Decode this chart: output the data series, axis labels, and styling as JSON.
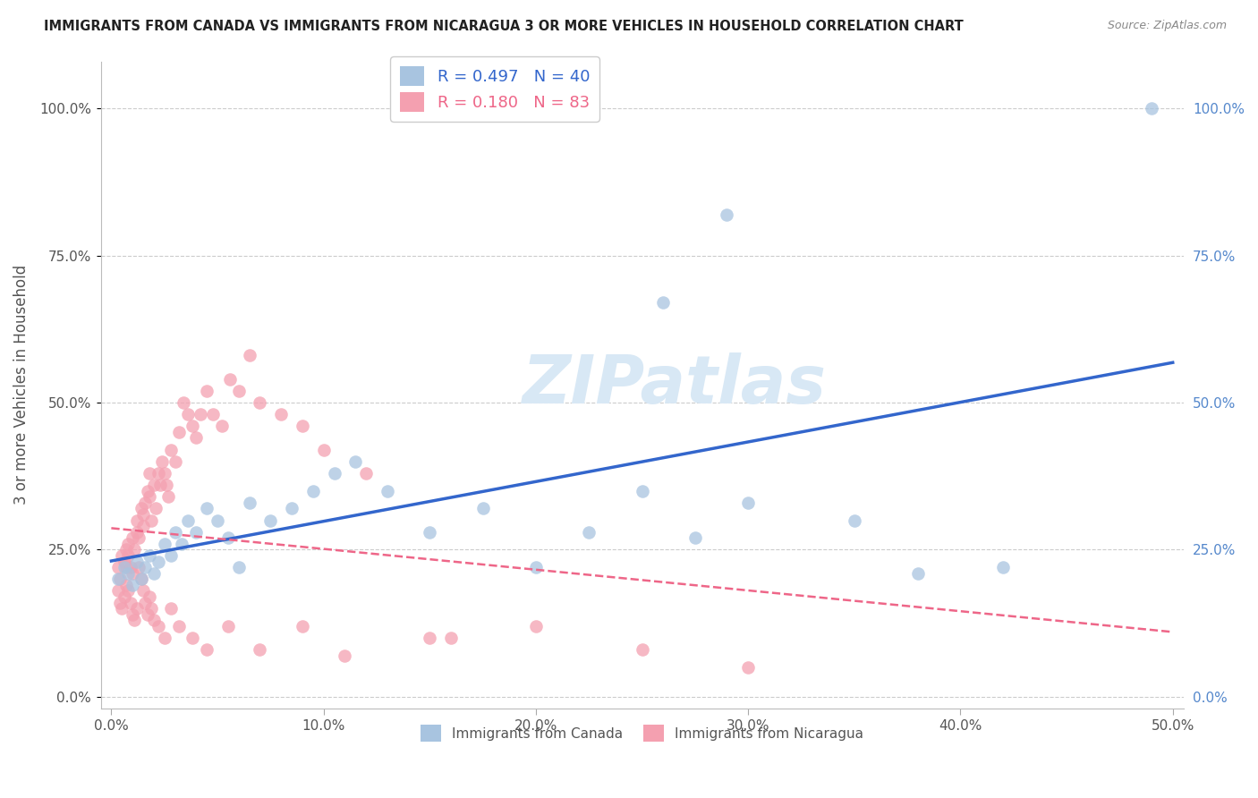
{
  "title": "IMMIGRANTS FROM CANADA VS IMMIGRANTS FROM NICARAGUA 3 OR MORE VEHICLES IN HOUSEHOLD CORRELATION CHART",
  "source": "Source: ZipAtlas.com",
  "ylabel": "3 or more Vehicles in Household",
  "xlabel_ticks": [
    "0.0%",
    "10.0%",
    "20.0%",
    "30.0%",
    "40.0%",
    "50.0%"
  ],
  "xlabel_vals": [
    0.0,
    0.1,
    0.2,
    0.3,
    0.4,
    0.5
  ],
  "ylabel_ticks": [
    "0.0%",
    "25.0%",
    "50.0%",
    "75.0%",
    "100.0%"
  ],
  "ylabel_vals": [
    0.0,
    0.25,
    0.5,
    0.75,
    1.0
  ],
  "xlim": [
    -0.005,
    0.505
  ],
  "ylim": [
    -0.02,
    1.08
  ],
  "canada_R": 0.497,
  "canada_N": 40,
  "nicaragua_R": 0.18,
  "nicaragua_N": 83,
  "canada_color": "#A8C4E0",
  "nicaragua_color": "#F4A0B0",
  "canada_line_color": "#3366CC",
  "nicaragua_line_color": "#EE6688",
  "canada_x": [
    0.003,
    0.006,
    0.008,
    0.01,
    0.012,
    0.014,
    0.016,
    0.018,
    0.02,
    0.022,
    0.025,
    0.028,
    0.03,
    0.033,
    0.036,
    0.04,
    0.045,
    0.05,
    0.055,
    0.06,
    0.065,
    0.075,
    0.085,
    0.095,
    0.105,
    0.115,
    0.13,
    0.15,
    0.175,
    0.2,
    0.225,
    0.25,
    0.275,
    0.3,
    0.35,
    0.26,
    0.29,
    0.38,
    0.42,
    0.49
  ],
  "canada_y": [
    0.2,
    0.22,
    0.21,
    0.19,
    0.23,
    0.2,
    0.22,
    0.24,
    0.21,
    0.23,
    0.26,
    0.24,
    0.28,
    0.26,
    0.3,
    0.28,
    0.32,
    0.3,
    0.27,
    0.22,
    0.33,
    0.3,
    0.32,
    0.35,
    0.38,
    0.4,
    0.35,
    0.28,
    0.32,
    0.22,
    0.28,
    0.35,
    0.27,
    0.33,
    0.3,
    0.67,
    0.82,
    0.21,
    0.22,
    1.0
  ],
  "nicaragua_x": [
    0.003,
    0.004,
    0.005,
    0.006,
    0.007,
    0.007,
    0.008,
    0.008,
    0.009,
    0.01,
    0.01,
    0.011,
    0.012,
    0.012,
    0.013,
    0.014,
    0.015,
    0.015,
    0.016,
    0.017,
    0.018,
    0.018,
    0.019,
    0.02,
    0.021,
    0.022,
    0.023,
    0.024,
    0.025,
    0.026,
    0.027,
    0.028,
    0.03,
    0.032,
    0.034,
    0.036,
    0.038,
    0.04,
    0.042,
    0.045,
    0.048,
    0.052,
    0.056,
    0.06,
    0.065,
    0.07,
    0.08,
    0.09,
    0.1,
    0.12,
    0.003,
    0.004,
    0.005,
    0.006,
    0.007,
    0.008,
    0.009,
    0.01,
    0.011,
    0.012,
    0.013,
    0.014,
    0.015,
    0.016,
    0.017,
    0.018,
    0.019,
    0.02,
    0.022,
    0.025,
    0.028,
    0.032,
    0.038,
    0.045,
    0.055,
    0.07,
    0.09,
    0.11,
    0.15,
    0.2,
    0.25,
    0.3,
    0.16
  ],
  "nicaragua_y": [
    0.22,
    0.2,
    0.24,
    0.23,
    0.25,
    0.22,
    0.26,
    0.24,
    0.22,
    0.21,
    0.27,
    0.25,
    0.28,
    0.3,
    0.27,
    0.32,
    0.29,
    0.31,
    0.33,
    0.35,
    0.38,
    0.34,
    0.3,
    0.36,
    0.32,
    0.38,
    0.36,
    0.4,
    0.38,
    0.36,
    0.34,
    0.42,
    0.4,
    0.45,
    0.5,
    0.48,
    0.46,
    0.44,
    0.48,
    0.52,
    0.48,
    0.46,
    0.54,
    0.52,
    0.58,
    0.5,
    0.48,
    0.46,
    0.42,
    0.38,
    0.18,
    0.16,
    0.15,
    0.17,
    0.19,
    0.18,
    0.16,
    0.14,
    0.13,
    0.15,
    0.22,
    0.2,
    0.18,
    0.16,
    0.14,
    0.17,
    0.15,
    0.13,
    0.12,
    0.1,
    0.15,
    0.12,
    0.1,
    0.08,
    0.12,
    0.08,
    0.12,
    0.07,
    0.1,
    0.12,
    0.08,
    0.05,
    0.1
  ]
}
